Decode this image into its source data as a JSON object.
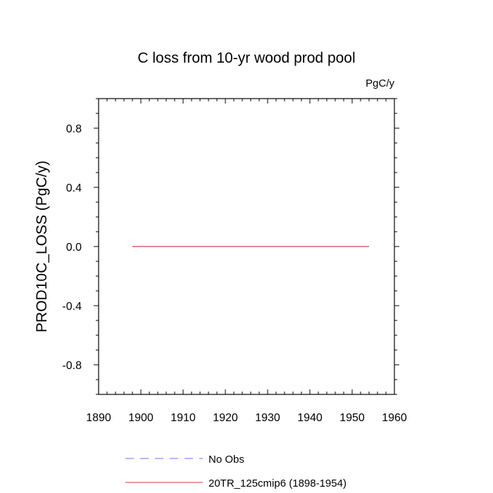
{
  "chart_data": {
    "type": "line",
    "title": "C loss from 10-yr wood prod pool",
    "units": "PgC/y",
    "ylabel": "PROD10C_LOSS  (PgC/y)",
    "xlabel": "",
    "xlim": [
      1890,
      1960
    ],
    "ylim": [
      -1.0,
      1.0
    ],
    "x_ticks": [
      1890,
      1900,
      1910,
      1920,
      1930,
      1940,
      1950,
      1960
    ],
    "x_tick_labels": [
      "1890",
      "1900",
      "1910",
      "1920",
      "1930",
      "1940",
      "1950",
      "1960"
    ],
    "y_ticks": [
      0.8,
      0.4,
      0.0,
      -0.4,
      -0.8
    ],
    "y_tick_labels": [
      "0.8",
      "0.4",
      "0.0",
      "-0.4",
      "-0.8"
    ],
    "grid": false,
    "legend_placement": "below",
    "series": [
      {
        "name": "No Obs",
        "color": "#8c8cf0",
        "dash": "dashed",
        "x": [],
        "y": []
      },
      {
        "name": "20TR_125cmip6 (1898-1954)",
        "color": "#e06060",
        "dash": "solid",
        "x": [
          1898,
          1954
        ],
        "y": [
          0.0,
          0.0
        ]
      }
    ]
  }
}
